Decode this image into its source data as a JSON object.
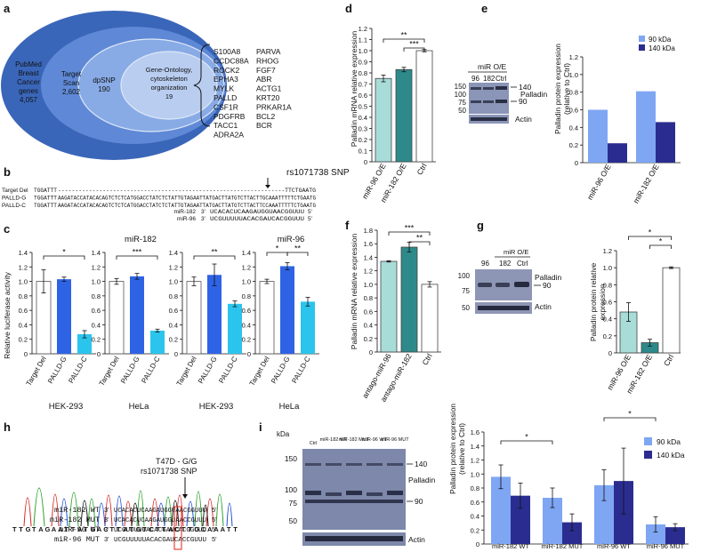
{
  "colors": {
    "outer_blue": "#3a66b9",
    "mid_blue": "#5f89d6",
    "inner_blue": "#88abe6",
    "core_blue": "#b9cdf0",
    "light_blue": "#5b8cf0",
    "bar_blue": "#2f63e6",
    "bar_cyan": "#2bc4ec",
    "teal_light": "#a8dcd8",
    "teal_dark": "#2e8a8a",
    "navy": "#2a2d8f",
    "sky": "#7fa6f3",
    "snp_red": "#e0201b"
  },
  "panel_a": {
    "letter": "a",
    "outer": "PubMed Breast Cancer genes 4,057",
    "outer_lines": [
      "PubMed",
      "Breast",
      "Cancer",
      "genes",
      "4,057"
    ],
    "target_scan_lines": [
      "Target",
      "Scan",
      "2,602"
    ],
    "dpsnp_lines": [
      "dpSNP",
      "190"
    ],
    "go_lines": [
      "Gene-Ontology,",
      "cytoskeleton",
      "organization",
      "19"
    ],
    "genes_col1": [
      "S100A8",
      "CCDC88A",
      "ROCK2",
      "EPHA3",
      "MYLK",
      "PALLD",
      "CSF1R",
      "PDGFRB",
      "TACC1",
      "ADRA2A"
    ],
    "genes_col2": [
      "PARVA",
      "RHOG",
      "FGF7",
      "ABR",
      "ACTG1",
      "KRT20",
      "PRKAR1A",
      "BCL2",
      "BCR"
    ]
  },
  "panel_b": {
    "letter": "b",
    "snp_label": "rs1071738 SNP",
    "rows": [
      {
        "label": "Target Del",
        "prefix": "TGGATTT",
        "seq": "------------------------------------------------------------------TTCTGAATG"
      },
      {
        "label": "PALLD-G",
        "prefix": "TGGATTT",
        "seq": "AAGATACCATACACAGTCTCTCATGGACCTATCTCTATTGTAGAATTATGACTTATGTCTTACTTGCAAATTTTTCTGAATG"
      },
      {
        "label": "PALLD-C",
        "prefix": "TGGATTT",
        "seq": "AAGATACCATACACAGTCTCTCATGGACCTATCTCTATTGTAGAATTATGACTTATGTCTTACTTCCAAATTTTTCTGAATG"
      }
    ],
    "mirs": [
      {
        "name": "miR-182",
        "p3": "3'",
        "seq": "UCACACUCAAGAUGGUAACGGUUU",
        "p5": "5'"
      },
      {
        "name": "miR-96",
        "p3": "3'",
        "seq": "UCGUUUUUACACGAUCACGGUUU",
        "p5": "5'"
      }
    ]
  },
  "panel_c": {
    "letter": "c",
    "ylabel": "Relative luciferase activity",
    "charts": [
      {
        "title": "",
        "cell": "HEK-293",
        "ylim": [
          0,
          1.4
        ],
        "ticks": [
          "0",
          "0.2",
          "0.4",
          "0.6",
          "0.8",
          "1.0",
          "1.2",
          "1.4"
        ],
        "categories": [
          "Target Del",
          "PALLD-G",
          "PALLD-C"
        ],
        "values": [
          1.0,
          1.03,
          0.27
        ],
        "errors": [
          0.16,
          0.03,
          0.05
        ],
        "sig": [
          "*"
        ]
      },
      {
        "title": "miR-182",
        "cell": "HeLa",
        "ylim": [
          0,
          1.4
        ],
        "ticks": [
          "0",
          "0.2",
          "0.4",
          "0.6",
          "0.8",
          "1.0",
          "1.2",
          "1.4"
        ],
        "categories": [
          "Target Del",
          "PALLD-G",
          "PALLD-C"
        ],
        "values": [
          1.0,
          1.07,
          0.32
        ],
        "errors": [
          0.04,
          0.04,
          0.02
        ],
        "sig": [
          "***"
        ]
      },
      {
        "title": "",
        "cell": "HEK-293",
        "ylim": [
          0,
          1.4
        ],
        "ticks": [
          "0",
          "0.2",
          "0.4",
          "0.6",
          "0.8",
          "1.0",
          "1.2",
          "1.4"
        ],
        "categories": [
          "Target Del",
          "PALLD-G",
          "PALLD-C"
        ],
        "values": [
          1.0,
          1.09,
          0.69
        ],
        "errors": [
          0.06,
          0.15,
          0.04
        ],
        "sig": [
          "**"
        ]
      },
      {
        "title": "miR-96",
        "cell": "HeLa",
        "ylim": [
          0,
          1.4
        ],
        "ticks": [
          "0",
          "0.2",
          "0.4",
          "0.6",
          "0.8",
          "1.0",
          "1.2",
          "1.4"
        ],
        "categories": [
          "Target Del",
          "PALLD-G",
          "PALLD-C"
        ],
        "values": [
          1.0,
          1.21,
          0.72
        ],
        "errors": [
          0.03,
          0.05,
          0.06
        ],
        "sig": [
          "*",
          "**"
        ]
      }
    ]
  },
  "panel_d": {
    "letter": "d",
    "chart_data": {
      "type": "bar",
      "ylabel": "Palladin mRNA relative expression",
      "ylim": [
        0,
        1.2
      ],
      "ticks": [
        "0",
        "0.1",
        "0.2",
        "0.3",
        "0.4",
        "0.5",
        "0.6",
        "0.7",
        "0.8",
        "0.9",
        "1.0",
        "1.1",
        "1.2"
      ],
      "categories": [
        "miR-96 O/E",
        "miR-182 O/E",
        "Ctrl"
      ],
      "values": [
        0.75,
        0.83,
        1.0
      ],
      "errors": [
        0.03,
        0.02,
        0.01
      ],
      "sig": [
        "**",
        "***"
      ]
    }
  },
  "panel_e": {
    "letter": "e",
    "blot_header": "miR O/E",
    "lanes": [
      "96",
      "182",
      "Ctrl"
    ],
    "kda": [
      "150",
      "100",
      "75",
      "50"
    ],
    "band_labels": [
      "140",
      "Palladin",
      "90",
      "Actin"
    ],
    "chart_data": {
      "type": "bar",
      "ylabel": "Palladin protein expression (relative to Ctrl)",
      "ylabel_lines": [
        "Palladin protein expression",
        "(relative to Ctrl)"
      ],
      "ylim": [
        0,
        1.2
      ],
      "ticks": [
        "0",
        "0.2",
        "0.4",
        "0.6",
        "0.8",
        "1.0",
        "1.2"
      ],
      "categories": [
        "miR-96 O/E",
        "miR-182 O/E"
      ],
      "series": [
        {
          "name": "90 kDa",
          "values": [
            0.6,
            0.81
          ]
        },
        {
          "name": "140 kDa",
          "values": [
            0.22,
            0.46
          ]
        }
      ],
      "legend": "top-right"
    }
  },
  "panel_f": {
    "letter": "f",
    "chart_data": {
      "type": "bar",
      "ylabel": "Palladin mRNA relative expression",
      "ylim": [
        0,
        1.8
      ],
      "ticks": [
        "0",
        "0.2",
        "0.4",
        "0.6",
        "0.8",
        "1.0",
        "1.2",
        "1.4",
        "1.6",
        "1.8"
      ],
      "categories": [
        "antago-miR-96",
        "antago-miR-182",
        "Ctrl"
      ],
      "values": [
        1.34,
        1.55,
        1.0
      ],
      "errors": [
        0.01,
        0.07,
        0.04
      ],
      "sig": [
        "***",
        "**"
      ]
    }
  },
  "panel_g": {
    "letter": "g",
    "blot_header": "miR O/E",
    "lanes": [
      "96",
      "182",
      "Ctrl"
    ],
    "kda": [
      "100",
      "75",
      "50"
    ],
    "band_labels": [
      "Palladin",
      "90",
      "Actin"
    ],
    "chart_data": {
      "type": "bar",
      "ylabel": "Palladin protein relative expression",
      "ylabel_lines": [
        "Palladin protein relative",
        "expression"
      ],
      "ylim": [
        0,
        1.2
      ],
      "ticks": [
        "0",
        "0.2",
        "0.4",
        "0.6",
        "0.8",
        "1.0",
        "1.2"
      ],
      "categories": [
        "miR-96 O/E",
        "miR-182 O/E",
        "Ctrl"
      ],
      "values": [
        0.48,
        0.12,
        1.0
      ],
      "errors": [
        0.11,
        0.04,
        0.01
      ],
      "sig": [
        "*",
        "*"
      ]
    }
  },
  "panel_h": {
    "letter": "h",
    "genotype": "T47D - G/G",
    "snp_label": "rs1071738 SNP",
    "seq_letters": [
      "T",
      "T",
      "G",
      "T",
      "A",
      "G",
      "A",
      "A",
      "T",
      "T",
      "A",
      "T",
      "G",
      "A",
      "C",
      "T",
      "T",
      "A",
      "T",
      "G",
      "T",
      "C",
      "T",
      "T",
      "A",
      "C",
      "T",
      "T",
      "G",
      "C",
      "A",
      "A",
      "A",
      "T",
      "T"
    ],
    "rows": [
      {
        "name": "miR-182 WT",
        "p3": "3'",
        "seq": "UCACACUCAAGAUGGUAACGGUUU",
        "p5": "5'"
      },
      {
        "name": "miR-182 MUT",
        "p3": "3'",
        "seq": "UCACACUCAAGAUGGUAACCGUUU",
        "p5": "5'"
      },
      {
        "name": "miR-96 WT",
        "p3": "3'",
        "seq": "UCGUUUUUACACGAUCACGGUUU",
        "p5": "5'"
      },
      {
        "name": "miR-96 MUT",
        "p3": "3'",
        "seq": "UCGUUUUUACACGAUCACCGUUU",
        "p5": "5'"
      }
    ]
  },
  "panel_i": {
    "letter": "i",
    "kda_title": "kDa",
    "lanes": [
      "Ctrl",
      "miR-182 WT",
      "miR-182 MUT",
      "miR-96 WT",
      "miR-96 MUT"
    ],
    "kda": [
      "150",
      "100",
      "75",
      "50"
    ],
    "band_labels": [
      "140",
      "Palladin",
      "90",
      "Actin"
    ],
    "chart_data": {
      "type": "bar",
      "ylabel": "Palladin protein expression (relative to Ctrl)",
      "ylabel_lines": [
        "Palladin protein expression",
        "(relative to Ctrl)"
      ],
      "ylim": [
        0,
        1.6
      ],
      "ticks": [
        "0",
        "0.2",
        "0.4",
        "0.6",
        "0.8",
        "1.0",
        "1.2",
        "1.4",
        "1.6"
      ],
      "categories": [
        "miR-182 WT",
        "miR-182 MUT",
        "miR-96 WT",
        "miR-96 MUT"
      ],
      "series": [
        {
          "name": "90 kDa",
          "values": [
            0.96,
            0.66,
            0.84,
            0.28
          ],
          "errors": [
            0.17,
            0.14,
            0.22,
            0.11
          ]
        },
        {
          "name": "140 kDa",
          "values": [
            0.69,
            0.31,
            0.9,
            0.24
          ],
          "errors": [
            0.18,
            0.12,
            0.47,
            0.05
          ]
        }
      ],
      "sig": [
        "*",
        "*"
      ],
      "legend": "top-right"
    }
  }
}
